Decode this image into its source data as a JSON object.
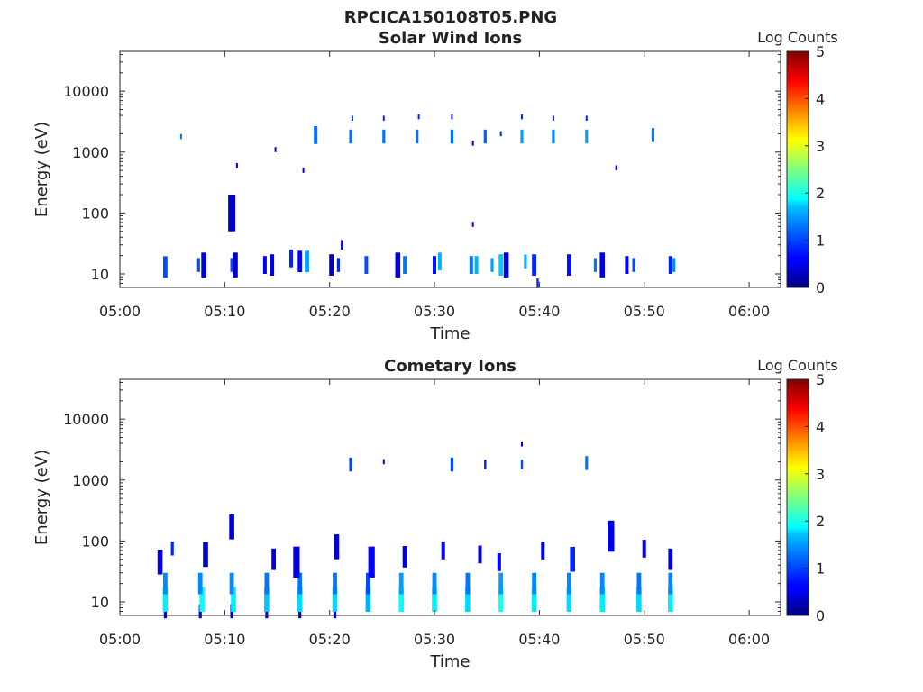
{
  "figure_title": "RPCICA150108T05.PNG",
  "chart_data": [
    {
      "type": "heatmap",
      "title": "Solar Wind Ions",
      "xlabel": "Time",
      "ylabel": "Energy (eV)",
      "y_scale": "log",
      "ylim": [
        6,
        45000
      ],
      "xlim": [
        "05:00",
        "06:03"
      ],
      "x_ticks": [
        "05:00",
        "05:10",
        "05:20",
        "05:30",
        "05:40",
        "05:50",
        "06:00"
      ],
      "y_ticks": [
        {
          "value": 10,
          "label": "10"
        },
        {
          "value": 100,
          "label": "100"
        },
        {
          "value": 1000,
          "label": "1000"
        },
        {
          "value": 10000,
          "label": "10000"
        }
      ],
      "colorbar": {
        "label": "Log Counts",
        "colormap": "jet",
        "range": [
          0,
          5
        ],
        "ticks": [
          "0",
          "1",
          "2",
          "3",
          "4",
          "5"
        ]
      },
      "cells": [
        [
          "05:04:20",
          13,
          1,
          1.5
        ],
        [
          "05:07:30",
          14,
          1,
          1.3
        ],
        [
          "05:08:00",
          14,
          0.4,
          1.6
        ],
        [
          "05:10:40",
          14,
          1,
          1.3
        ],
        [
          "05:11:00",
          14,
          0.4,
          1.6
        ],
        [
          "05:13:50",
          14,
          0.6,
          1.4
        ],
        [
          "05:14:30",
          14,
          0.5,
          1.5
        ],
        [
          "05:16:20",
          18,
          0.8,
          1.4
        ],
        [
          "05:17:10",
          16,
          0.6,
          1.5
        ],
        [
          "05:17:50",
          16,
          1.4,
          1.5
        ],
        [
          "05:20:10",
          14,
          0.4,
          1.5
        ],
        [
          "05:20:50",
          14,
          0.8,
          1.3
        ],
        [
          "05:23:30",
          14,
          1,
          1.4
        ],
        [
          "05:26:30",
          14,
          0.5,
          1.6
        ],
        [
          "05:27:10",
          14,
          1.2,
          1.4
        ],
        [
          "05:30:00",
          14,
          0.7,
          1.4
        ],
        [
          "05:30:30",
          16,
          1.5,
          1.4
        ],
        [
          "05:33:30",
          14,
          1.2,
          1.4
        ],
        [
          "05:34:00",
          14,
          1.5,
          1.4
        ],
        [
          "05:35:30",
          14,
          1.4,
          1.3
        ],
        [
          "05:36:20",
          14,
          1.6,
          1.5
        ],
        [
          "05:36:50",
          14,
          0.5,
          1.6
        ],
        [
          "05:38:40",
          16,
          1.5,
          1.3
        ],
        [
          "05:39:30",
          14,
          0.8,
          1.5
        ],
        [
          "05:42:50",
          14,
          0.7,
          1.5
        ],
        [
          "05:45:20",
          14,
          1.2,
          1.3
        ],
        [
          "05:46:00",
          14,
          0.5,
          1.6
        ],
        [
          "05:48:20",
          14,
          0.6,
          1.4
        ],
        [
          "05:49:00",
          14,
          1,
          1.3
        ],
        [
          "05:52:30",
          14,
          0.8,
          1.4
        ],
        [
          "05:52:50",
          14,
          1.3,
          1.3
        ],
        [
          "05:05:50",
          1800,
          1.2,
          1.1
        ],
        [
          "05:10:40",
          100,
          0.4,
          2
        ],
        [
          "05:11:10",
          600,
          0.5,
          1.1
        ],
        [
          "05:14:50",
          1100,
          0.5,
          1.1
        ],
        [
          "05:17:30",
          500,
          0.5,
          1.1
        ],
        [
          "05:18:40",
          1900,
          1.2,
          1.4
        ],
        [
          "05:22:00",
          1800,
          1.2,
          1.3
        ],
        [
          "05:22:10",
          3600,
          0.8,
          1.1
        ],
        [
          "05:25:10",
          1800,
          1.2,
          1.3
        ],
        [
          "05:25:10",
          3600,
          0.8,
          1.1
        ],
        [
          "05:28:20",
          1800,
          1.2,
          1.3
        ],
        [
          "05:28:30",
          3800,
          0.8,
          1.1
        ],
        [
          "05:31:40",
          1800,
          1.2,
          1.3
        ],
        [
          "05:31:40",
          3800,
          0.8,
          1.1
        ],
        [
          "05:33:40",
          1400,
          0.6,
          1.1
        ],
        [
          "05:33:40",
          65,
          0.6,
          1.1
        ],
        [
          "05:34:50",
          1800,
          1.1,
          1.3
        ],
        [
          "05:36:20",
          2000,
          0.8,
          1.1
        ],
        [
          "05:38:20",
          1800,
          1.4,
          1.3
        ],
        [
          "05:38:20",
          3800,
          0.8,
          1.1
        ],
        [
          "05:41:20",
          1800,
          1.3,
          1.3
        ],
        [
          "05:41:20",
          3600,
          0.8,
          1.1
        ],
        [
          "05:44:30",
          1800,
          1.4,
          1.3
        ],
        [
          "05:44:30",
          3600,
          0.8,
          1.1
        ],
        [
          "05:47:20",
          550,
          0.6,
          1.1
        ],
        [
          "05:50:50",
          1900,
          1.2,
          1.3
        ],
        [
          "05:21:10",
          30,
          0.5,
          1.2
        ],
        [
          "05:39:50",
          7,
          0.8,
          1.2
        ]
      ]
    },
    {
      "type": "heatmap",
      "title": "Cometary Ions",
      "xlabel": "Time",
      "ylabel": "Energy (eV)",
      "y_scale": "log",
      "ylim": [
        6,
        45000
      ],
      "xlim": [
        "05:00",
        "06:03"
      ],
      "x_ticks": [
        "05:00",
        "05:10",
        "05:20",
        "05:30",
        "05:40",
        "05:50",
        "06:00"
      ],
      "y_ticks": [
        {
          "value": 10,
          "label": "10"
        },
        {
          "value": 100,
          "label": "100"
        },
        {
          "value": 1000,
          "label": "1000"
        },
        {
          "value": 10000,
          "label": "10000"
        }
      ],
      "colorbar": {
        "label": "Log Counts",
        "colormap": "jet",
        "range": [
          0,
          5
        ],
        "ticks": [
          "0",
          "1",
          "2",
          "3",
          "4",
          "5"
        ]
      },
      "cells": [
        [
          "05:04:20",
          7,
          0.4,
          1.3
        ],
        [
          "05:04:20",
          11,
          1.8,
          1.6
        ],
        [
          "05:04:20",
          20,
          1.3,
          1.5
        ],
        [
          "05:03:50",
          45,
          0.5,
          1.6
        ],
        [
          "05:05:00",
          75,
          0.8,
          1.3
        ],
        [
          "05:07:40",
          7,
          0.4,
          1.3
        ],
        [
          "05:07:50",
          11,
          1.9,
          1.6
        ],
        [
          "05:07:40",
          20,
          1.3,
          1.5
        ],
        [
          "05:08:10",
          60,
          0.4,
          1.6
        ],
        [
          "05:10:40",
          7,
          0.4,
          1.3
        ],
        [
          "05:10:50",
          11,
          1.8,
          1.6
        ],
        [
          "05:10:40",
          20,
          1.3,
          1.5
        ],
        [
          "05:10:40",
          170,
          0.4,
          1.6
        ],
        [
          "05:14:00",
          7,
          0.4,
          1.3
        ],
        [
          "05:14:00",
          11,
          1.6,
          1.6
        ],
        [
          "05:14:00",
          20,
          1.2,
          1.5
        ],
        [
          "05:14:40",
          50,
          0.5,
          1.5
        ],
        [
          "05:17:10",
          7,
          0.4,
          1.3
        ],
        [
          "05:17:10",
          11,
          1.7,
          1.6
        ],
        [
          "05:17:10",
          20,
          1.2,
          1.5
        ],
        [
          "05:16:50",
          45,
          0.5,
          1.8
        ],
        [
          "05:20:30",
          7,
          0.4,
          1.3
        ],
        [
          "05:20:30",
          11,
          1.7,
          1.6
        ],
        [
          "05:20:30",
          20,
          1.2,
          1.5
        ],
        [
          "05:20:40",
          80,
          0.5,
          1.6
        ],
        [
          "05:23:40",
          11,
          1.5,
          1.6
        ],
        [
          "05:23:40",
          20,
          1.0,
          1.5
        ],
        [
          "05:24:00",
          45,
          0.6,
          1.8
        ],
        [
          "05:26:50",
          11,
          1.9,
          1.6
        ],
        [
          "05:26:50",
          20,
          1.4,
          1.5
        ],
        [
          "05:27:10",
          55,
          0.5,
          1.5
        ],
        [
          "05:30:00",
          11,
          1.8,
          1.6
        ],
        [
          "05:30:00",
          20,
          1.3,
          1.5
        ],
        [
          "05:30:50",
          70,
          0.5,
          1.4
        ],
        [
          "05:33:10",
          11,
          1.7,
          1.6
        ],
        [
          "05:33:10",
          20,
          1.2,
          1.5
        ],
        [
          "05:34:20",
          60,
          0.5,
          1.4
        ],
        [
          "05:36:20",
          11,
          2.0,
          1.6
        ],
        [
          "05:36:20",
          20,
          1.4,
          1.5
        ],
        [
          "05:36:10",
          45,
          0.6,
          1.4
        ],
        [
          "05:39:30",
          11,
          1.8,
          1.6
        ],
        [
          "05:39:30",
          20,
          1.3,
          1.5
        ],
        [
          "05:40:20",
          70,
          0.5,
          1.4
        ],
        [
          "05:42:50",
          11,
          1.7,
          1.6
        ],
        [
          "05:42:50",
          20,
          1.3,
          1.5
        ],
        [
          "05:43:10",
          50,
          0.8,
          1.6
        ],
        [
          "05:46:00",
          11,
          1.8,
          1.6
        ],
        [
          "05:46:00",
          20,
          1.3,
          1.5
        ],
        [
          "05:46:50",
          120,
          0.5,
          1.8
        ],
        [
          "05:49:30",
          11,
          1.7,
          1.6
        ],
        [
          "05:49:30",
          20,
          1.2,
          1.5
        ],
        [
          "05:50:00",
          75,
          0.5,
          1.4
        ],
        [
          "05:52:30",
          11,
          1.8,
          1.6
        ],
        [
          "05:52:30",
          20,
          1.3,
          1.5
        ],
        [
          "05:52:30",
          50,
          0.5,
          1.5
        ],
        [
          "05:22:00",
          1800,
          1.0,
          1.3
        ],
        [
          "05:25:10",
          2000,
          0.5,
          1.1
        ],
        [
          "05:31:40",
          1800,
          1.0,
          1.3
        ],
        [
          "05:34:50",
          1800,
          0.8,
          1.2
        ],
        [
          "05:38:20",
          1800,
          1.0,
          1.2
        ],
        [
          "05:38:20",
          3900,
          0.6,
          1.1
        ],
        [
          "05:44:30",
          1900,
          1.2,
          1.3
        ]
      ]
    }
  ]
}
